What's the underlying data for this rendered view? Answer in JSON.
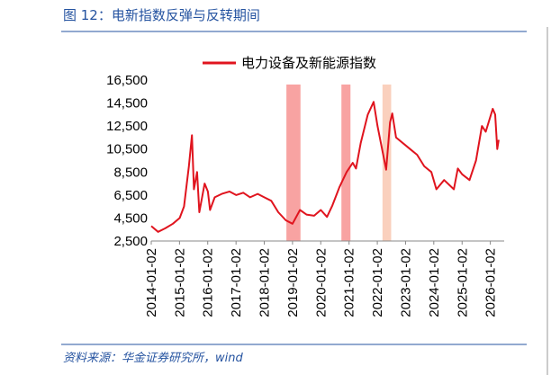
{
  "chart_data": {
    "type": "line",
    "title": "图 12：电新指数反弹与反转期间",
    "source": "资料来源：华金证券研究所，wind",
    "x": [
      "2014-01-02",
      "2014-04-01",
      "2014-07-01",
      "2014-10-08",
      "2015-01-05",
      "2015-03-02",
      "2015-05-04",
      "2015-06-12",
      "2015-07-08",
      "2015-08-17",
      "2015-09-15",
      "2015-11-23",
      "2016-01-04",
      "2016-02-01",
      "2016-04-01",
      "2016-07-01",
      "2016-10-10",
      "2017-01-03",
      "2017-04-05",
      "2017-07-03",
      "2017-10-09",
      "2018-01-02",
      "2018-04-02",
      "2018-07-02",
      "2018-10-08",
      "2019-01-02",
      "2019-04-08",
      "2019-07-01",
      "2019-10-08",
      "2020-01-02",
      "2020-03-23",
      "2020-06-01",
      "2020-09-01",
      "2020-12-01",
      "2021-02-18",
      "2021-04-01",
      "2021-06-01",
      "2021-09-01",
      "2021-11-15",
      "2022-01-04",
      "2022-04-26",
      "2022-06-15",
      "2022-07-15",
      "2022-09-01",
      "2022-12-01",
      "2023-03-01",
      "2023-06-01",
      "2023-09-01",
      "2023-12-01",
      "2024-02-05",
      "2024-05-15",
      "2024-09-18",
      "2024-11-08",
      "2025-01-02",
      "2025-04-08",
      "2025-07-01",
      "2025-09-15",
      "2025-11-03",
      "2026-02-02",
      "2026-03-06",
      "2026-04-01",
      "2026-04-20"
    ],
    "series": [
      {
        "name": "电力设备及新能源指数",
        "color": "#e0141e",
        "values": [
          3800,
          3300,
          3600,
          4000,
          4500,
          5500,
          9000,
          11700,
          7000,
          8500,
          5000,
          7500,
          6800,
          5200,
          6300,
          6600,
          6800,
          6500,
          6700,
          6300,
          6600,
          6300,
          6000,
          5000,
          4300,
          4000,
          5200,
          4800,
          4700,
          5200,
          4600,
          5600,
          7200,
          8500,
          9300,
          8800,
          11000,
          13500,
          14600,
          12500,
          8700,
          12800,
          13600,
          11500,
          11000,
          10500,
          10000,
          9000,
          8500,
          7000,
          7800,
          7000,
          8800,
          8300,
          7800,
          9500,
          12500,
          12000,
          14000,
          13500,
          10500,
          11300
        ]
      }
    ],
    "shaded_regions": [
      {
        "start": "2018-10-15",
        "end": "2019-04-15",
        "color": "#f8a3a2"
      },
      {
        "start": "2020-09-25",
        "end": "2021-01-20",
        "color": "#f8a3a2"
      },
      {
        "start": "2022-03-10",
        "end": "2022-06-30",
        "color": "#fad0bd"
      }
    ],
    "xlim": [
      "2014-01-02",
      "2026-06-30"
    ],
    "xticks": [
      "2014-01-02",
      "2015-01-02",
      "2016-01-02",
      "2017-01-02",
      "2018-01-02",
      "2019-01-02",
      "2020-01-02",
      "2021-01-02",
      "2022-01-02",
      "2023-01-02",
      "2024-01-02",
      "2025-01-02",
      "2026-01-02"
    ],
    "ylim": [
      2500,
      16500
    ],
    "yticks": [
      {
        "value": 2500,
        "label": "2,500"
      },
      {
        "value": 4500,
        "label": "4,500"
      },
      {
        "value": 6500,
        "label": "6,500"
      },
      {
        "value": 8500,
        "label": "8,500"
      },
      {
        "value": 10500,
        "label": "10,500"
      },
      {
        "value": 12500,
        "label": "12,500"
      },
      {
        "value": 14500,
        "label": "14,500"
      },
      {
        "value": 16500,
        "label": "16,500"
      }
    ]
  }
}
